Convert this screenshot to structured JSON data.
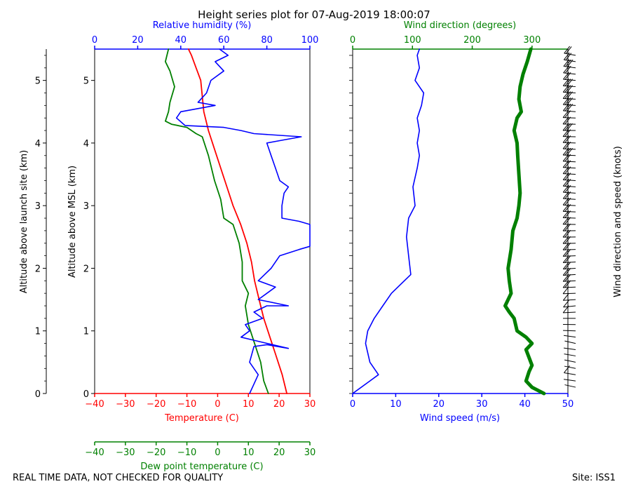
{
  "title": "Height series plot for 07-Aug-2019 18:00:07",
  "footer": {
    "quality_note": "REAL TIME DATA, NOT CHECKED FOR QUALITY",
    "site": "Site: ISS1"
  },
  "colors": {
    "temp": "#ff0000",
    "dew": "#008000",
    "rh": "#0000ff",
    "wdir": "#008000",
    "wspd": "#0000ff",
    "barb": "#000000"
  },
  "axes": {
    "launch_site": {
      "label": "Altitude above launch site (km)",
      "ticks": [
        "0",
        "1",
        "2",
        "3",
        "4",
        "5"
      ]
    },
    "msl": {
      "label": "Altitude above MSL (km)",
      "ticks": [
        "0",
        "1",
        "2",
        "3",
        "4",
        "5"
      ]
    },
    "temperature": {
      "label": "Temperature (C)",
      "ticks": [
        "−40",
        "−30",
        "−20",
        "−10",
        "0",
        "10",
        "20",
        "30"
      ]
    },
    "dewpoint": {
      "label": "Dew point temperature (C)",
      "ticks": [
        "−40",
        "−30",
        "−20",
        "−10",
        "0",
        "10",
        "20",
        "30"
      ]
    },
    "humidity": {
      "label": "Relative humidity (%)",
      "ticks": [
        "0",
        "20",
        "40",
        "60",
        "80",
        "100"
      ]
    },
    "wind_speed": {
      "label": "Wind speed (m/s)",
      "ticks": [
        "0",
        "10",
        "20",
        "30",
        "40",
        "50"
      ]
    },
    "wind_direction": {
      "label": "Wind direction (degrees)",
      "ticks": [
        "0",
        "100",
        "200",
        "300"
      ]
    },
    "barbs": {
      "label": "Wind direction and speed (knots)"
    }
  },
  "chart_data": [
    {
      "type": "line",
      "panel": "thermo",
      "title": "Height series plot for 07-Aug-2019 18:00:07",
      "ylabel": "Altitude above MSL (km)",
      "ylim": [
        0,
        5.5
      ],
      "series": [
        {
          "name": "Temperature (C)",
          "xlim": [
            -40,
            30
          ],
          "points": [
            [
              22.5,
              0
            ],
            [
              21,
              0.3
            ],
            [
              19,
              0.6
            ],
            [
              17,
              0.9
            ],
            [
              15,
              1.2
            ],
            [
              13.5,
              1.5
            ],
            [
              12,
              1.8
            ],
            [
              11,
              2.1
            ],
            [
              9.5,
              2.4
            ],
            [
              7.5,
              2.7
            ],
            [
              5,
              3.0
            ],
            [
              3,
              3.3
            ],
            [
              1,
              3.6
            ],
            [
              -1,
              3.9
            ],
            [
              -3,
              4.2
            ],
            [
              -4.5,
              4.5
            ],
            [
              -5,
              4.75
            ],
            [
              -5.5,
              5.0
            ],
            [
              -7,
              5.2
            ],
            [
              -8.5,
              5.4
            ],
            [
              -9.5,
              5.5
            ]
          ]
        },
        {
          "name": "Dew point temperature (C)",
          "xlim": [
            -40,
            30
          ],
          "points": [
            [
              16.5,
              0
            ],
            [
              15,
              0.2
            ],
            [
              14,
              0.5
            ],
            [
              12,
              0.8
            ],
            [
              10,
              1.1
            ],
            [
              9,
              1.4
            ],
            [
              10,
              1.6
            ],
            [
              8,
              1.8
            ],
            [
              8,
              2.1
            ],
            [
              7,
              2.4
            ],
            [
              5,
              2.7
            ],
            [
              2,
              2.8
            ],
            [
              1,
              3.1
            ],
            [
              -1,
              3.4
            ],
            [
              -3,
              3.8
            ],
            [
              -5,
              4.1
            ],
            [
              -7,
              4.15
            ],
            [
              -10,
              4.25
            ],
            [
              -15,
              4.3
            ],
            [
              -17,
              4.35
            ],
            [
              -16,
              4.5
            ],
            [
              -15.5,
              4.65
            ],
            [
              -14,
              4.9
            ],
            [
              -15.5,
              5.15
            ],
            [
              -17,
              5.3
            ],
            [
              -16,
              5.5
            ]
          ]
        },
        {
          "name": "Relative humidity (%)",
          "xlim": [
            0,
            100
          ],
          "points": [
            [
              72,
              0
            ],
            [
              74,
              0.15
            ],
            [
              76,
              0.3
            ],
            [
              72,
              0.5
            ],
            [
              74,
              0.75
            ],
            [
              80,
              0.78
            ],
            [
              90,
              0.72
            ],
            [
              74,
              0.85
            ],
            [
              68,
              0.9
            ],
            [
              72,
              1.0
            ],
            [
              70,
              1.1
            ],
            [
              78,
              1.2
            ],
            [
              74,
              1.3
            ],
            [
              80,
              1.4
            ],
            [
              90,
              1.4
            ],
            [
              76,
              1.5
            ],
            [
              80,
              1.6
            ],
            [
              84,
              1.7
            ],
            [
              76,
              1.8
            ],
            [
              82,
              2.0
            ],
            [
              86,
              2.2
            ],
            [
              95,
              2.3
            ],
            [
              100,
              2.35
            ],
            [
              100,
              2.7
            ],
            [
              95,
              2.75
            ],
            [
              87,
              2.8
            ],
            [
              87,
              3.0
            ],
            [
              88,
              3.2
            ],
            [
              90,
              3.3
            ],
            [
              86,
              3.4
            ],
            [
              84,
              3.6
            ],
            [
              82,
              3.8
            ],
            [
              80,
              4.0
            ],
            [
              88,
              4.05
            ],
            [
              96,
              4.1
            ],
            [
              74,
              4.15
            ],
            [
              68,
              4.2
            ],
            [
              60,
              4.25
            ],
            [
              42,
              4.28
            ],
            [
              38,
              4.4
            ],
            [
              40,
              4.5
            ],
            [
              56,
              4.6
            ],
            [
              48,
              4.65
            ],
            [
              52,
              4.8
            ],
            [
              54,
              5.0
            ],
            [
              60,
              5.15
            ],
            [
              56,
              5.3
            ],
            [
              62,
              5.4
            ],
            [
              58,
              5.5
            ]
          ]
        }
      ]
    },
    {
      "type": "line",
      "panel": "wind",
      "ylim": [
        0,
        5.5
      ],
      "series": [
        {
          "name": "Wind speed (m/s)",
          "xlim": [
            0,
            50
          ],
          "points": [
            [
              0,
              0
            ],
            [
              4,
              0.2
            ],
            [
              6,
              0.3
            ],
            [
              4,
              0.5
            ],
            [
              3,
              0.8
            ],
            [
              3.5,
              1.0
            ],
            [
              5,
              1.2
            ],
            [
              7,
              1.4
            ],
            [
              9,
              1.6
            ],
            [
              12,
              1.8
            ],
            [
              13.5,
              1.9
            ],
            [
              13,
              2.2
            ],
            [
              12.5,
              2.5
            ],
            [
              13,
              2.8
            ],
            [
              14.5,
              3.0
            ],
            [
              14,
              3.3
            ],
            [
              15,
              3.6
            ],
            [
              15.5,
              3.8
            ],
            [
              15,
              4.0
            ],
            [
              15.5,
              4.2
            ],
            [
              15,
              4.4
            ],
            [
              16,
              4.6
            ],
            [
              16.5,
              4.8
            ],
            [
              14.5,
              5.0
            ],
            [
              15.5,
              5.2
            ],
            [
              15,
              5.4
            ],
            [
              15.5,
              5.5
            ]
          ]
        },
        {
          "name": "Wind direction (degrees)",
          "xlim": [
            0,
            360
          ],
          "points": [
            [
              320,
              0
            ],
            [
              300,
              0.1
            ],
            [
              290,
              0.2
            ],
            [
              295,
              0.35
            ],
            [
              300,
              0.45
            ],
            [
              290,
              0.7
            ],
            [
              300,
              0.8
            ],
            [
              290,
              0.9
            ],
            [
              275,
              1.0
            ],
            [
              270,
              1.2
            ],
            [
              262,
              1.3
            ],
            [
              255,
              1.4
            ],
            [
              265,
              1.6
            ],
            [
              262,
              1.8
            ],
            [
              260,
              2.0
            ],
            [
              265,
              2.3
            ],
            [
              268,
              2.6
            ],
            [
              275,
              2.8
            ],
            [
              278,
              3.0
            ],
            [
              280,
              3.2
            ],
            [
              278,
              3.5
            ],
            [
              276,
              3.8
            ],
            [
              275,
              4.0
            ],
            [
              270,
              4.2
            ],
            [
              275,
              4.4
            ],
            [
              282,
              4.5
            ],
            [
              278,
              4.7
            ],
            [
              280,
              4.9
            ],
            [
              285,
              5.1
            ],
            [
              292,
              5.3
            ],
            [
              298,
              5.5
            ]
          ]
        }
      ]
    }
  ]
}
